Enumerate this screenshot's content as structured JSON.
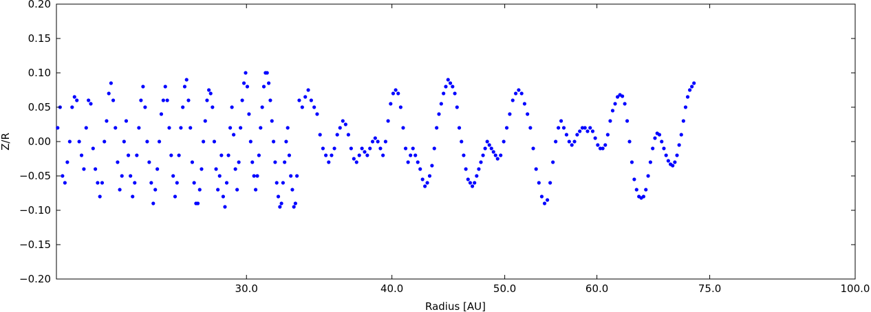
{
  "chart_data": {
    "type": "scatter",
    "xlabel": "Radius [AU]",
    "ylabel": "Z/R",
    "x_scale": "log",
    "xlim": [
      20.6,
      100.0
    ],
    "ylim": [
      -0.2,
      0.2
    ],
    "x_ticks": [
      30.0,
      40.0,
      50.0,
      60.0,
      75.0,
      100.0
    ],
    "x_tick_labels": [
      "30.0",
      "40.0",
      "50.0",
      "60.0",
      "75.0",
      "100.0"
    ],
    "y_ticks": [
      -0.2,
      -0.15,
      -0.1,
      -0.05,
      0.0,
      0.05,
      0.1,
      0.15,
      0.2
    ],
    "y_tick_labels": [
      "−0.20",
      "−0.15",
      "−0.10",
      "−0.05",
      "0.00",
      "0.05",
      "0.10",
      "0.15",
      "0.20"
    ],
    "grid": false,
    "marker_color": "#0000ff",
    "series": [
      {
        "points": [
          [
            20.65,
            0.02
          ],
          [
            20.75,
            0.05
          ],
          [
            20.85,
            -0.05
          ],
          [
            20.95,
            -0.06
          ],
          [
            21.05,
            -0.03
          ],
          [
            21.15,
            0.0
          ],
          [
            21.25,
            0.05
          ],
          [
            21.35,
            0.065
          ],
          [
            21.45,
            0.06
          ],
          [
            21.55,
            0.0
          ],
          [
            21.65,
            -0.02
          ],
          [
            21.75,
            -0.04
          ],
          [
            21.85,
            0.02
          ],
          [
            21.95,
            0.06
          ],
          [
            22.05,
            0.055
          ],
          [
            22.15,
            -0.01
          ],
          [
            22.25,
            -0.04
          ],
          [
            22.35,
            -0.06
          ],
          [
            22.45,
            -0.08
          ],
          [
            22.55,
            -0.06
          ],
          [
            22.65,
            0.0
          ],
          [
            22.75,
            0.03
          ],
          [
            22.85,
            0.07
          ],
          [
            22.95,
            0.085
          ],
          [
            23.05,
            0.06
          ],
          [
            23.15,
            0.02
          ],
          [
            23.25,
            -0.03
          ],
          [
            23.35,
            -0.07
          ],
          [
            23.45,
            -0.05
          ],
          [
            23.55,
            0.0
          ],
          [
            23.65,
            0.03
          ],
          [
            23.75,
            -0.02
          ],
          [
            23.85,
            -0.05
          ],
          [
            23.95,
            -0.08
          ],
          [
            24.05,
            -0.06
          ],
          [
            24.15,
            -0.02
          ],
          [
            24.25,
            0.02
          ],
          [
            24.35,
            0.06
          ],
          [
            24.45,
            0.08
          ],
          [
            24.55,
            0.05
          ],
          [
            24.65,
            0.0
          ],
          [
            24.75,
            -0.03
          ],
          [
            24.85,
            -0.06
          ],
          [
            24.95,
            -0.09
          ],
          [
            25.05,
            -0.07
          ],
          [
            25.15,
            -0.04
          ],
          [
            25.25,
            0.0
          ],
          [
            25.35,
            0.04
          ],
          [
            25.45,
            0.06
          ],
          [
            25.55,
            0.08
          ],
          [
            25.65,
            0.06
          ],
          [
            25.75,
            0.02
          ],
          [
            25.85,
            -0.02
          ],
          [
            25.95,
            -0.05
          ],
          [
            26.05,
            -0.08
          ],
          [
            26.15,
            -0.06
          ],
          [
            26.25,
            -0.02
          ],
          [
            26.35,
            0.02
          ],
          [
            26.45,
            0.05
          ],
          [
            26.55,
            0.08
          ],
          [
            26.65,
            0.09
          ],
          [
            26.75,
            0.06
          ],
          [
            26.85,
            0.02
          ],
          [
            26.95,
            -0.03
          ],
          [
            27.05,
            -0.06
          ],
          [
            27.15,
            -0.09
          ],
          [
            27.25,
            -0.09
          ],
          [
            27.35,
            -0.07
          ],
          [
            27.45,
            -0.04
          ],
          [
            27.55,
            0.0
          ],
          [
            27.65,
            0.03
          ],
          [
            27.75,
            0.06
          ],
          [
            27.85,
            0.075
          ],
          [
            27.95,
            0.07
          ],
          [
            28.05,
            0.05
          ],
          [
            28.15,
            0.0
          ],
          [
            28.25,
            -0.04
          ],
          [
            28.35,
            -0.07
          ],
          [
            28.45,
            -0.05
          ],
          [
            28.55,
            -0.02
          ],
          [
            28.65,
            -0.08
          ],
          [
            28.75,
            -0.095
          ],
          [
            28.85,
            -0.06
          ],
          [
            28.95,
            -0.02
          ],
          [
            29.05,
            0.02
          ],
          [
            29.15,
            0.05
          ],
          [
            29.25,
            0.01
          ],
          [
            29.35,
            -0.04
          ],
          [
            29.45,
            -0.07
          ],
          [
            29.55,
            -0.03
          ],
          [
            29.65,
            0.02
          ],
          [
            29.75,
            0.06
          ],
          [
            29.85,
            0.085
          ],
          [
            29.95,
            0.1
          ],
          [
            30.05,
            0.08
          ],
          [
            30.15,
            0.04
          ],
          [
            30.25,
            0.0
          ],
          [
            30.35,
            -0.03
          ],
          [
            30.45,
            -0.05
          ],
          [
            30.55,
            -0.07
          ],
          [
            30.65,
            -0.05
          ],
          [
            30.75,
            -0.02
          ],
          [
            30.85,
            0.02
          ],
          [
            30.95,
            0.05
          ],
          [
            31.05,
            0.08
          ],
          [
            31.15,
            0.1
          ],
          [
            31.25,
            0.1
          ],
          [
            31.35,
            0.085
          ],
          [
            31.45,
            0.06
          ],
          [
            31.55,
            0.03
          ],
          [
            31.65,
            0.0
          ],
          [
            31.75,
            -0.03
          ],
          [
            31.85,
            -0.06
          ],
          [
            31.95,
            -0.08
          ],
          [
            32.05,
            -0.095
          ],
          [
            32.15,
            -0.09
          ],
          [
            32.25,
            -0.06
          ],
          [
            32.35,
            -0.03
          ],
          [
            32.45,
            0.0
          ],
          [
            32.55,
            0.02
          ],
          [
            32.65,
            -0.02
          ],
          [
            32.75,
            -0.05
          ],
          [
            32.85,
            -0.07
          ],
          [
            32.95,
            -0.095
          ],
          [
            33.05,
            -0.09
          ],
          [
            33.15,
            -0.05
          ],
          [
            33.3,
            0.06
          ],
          [
            33.5,
            0.05
          ],
          [
            33.7,
            0.065
          ],
          [
            33.9,
            0.075
          ],
          [
            34.1,
            0.06
          ],
          [
            34.3,
            0.05
          ],
          [
            34.5,
            0.04
          ],
          [
            34.7,
            0.01
          ],
          [
            34.9,
            -0.01
          ],
          [
            35.1,
            -0.02
          ],
          [
            35.3,
            -0.03
          ],
          [
            35.5,
            -0.02
          ],
          [
            35.7,
            -0.01
          ],
          [
            35.9,
            0.01
          ],
          [
            36.1,
            0.02
          ],
          [
            36.3,
            0.03
          ],
          [
            36.5,
            0.025
          ],
          [
            36.7,
            0.01
          ],
          [
            36.9,
            -0.01
          ],
          [
            37.1,
            -0.025
          ],
          [
            37.3,
            -0.03
          ],
          [
            37.5,
            -0.02
          ],
          [
            37.7,
            -0.01
          ],
          [
            37.9,
            -0.015
          ],
          [
            38.1,
            -0.02
          ],
          [
            38.3,
            -0.01
          ],
          [
            38.5,
            0.0
          ],
          [
            38.7,
            0.005
          ],
          [
            38.9,
            0.0
          ],
          [
            39.1,
            -0.01
          ],
          [
            39.3,
            -0.02
          ],
          [
            39.5,
            0.0
          ],
          [
            39.7,
            0.03
          ],
          [
            39.9,
            0.055
          ],
          [
            40.1,
            0.07
          ],
          [
            40.3,
            0.075
          ],
          [
            40.5,
            0.07
          ],
          [
            40.7,
            0.05
          ],
          [
            40.9,
            0.02
          ],
          [
            41.1,
            -0.01
          ],
          [
            41.3,
            -0.03
          ],
          [
            41.5,
            -0.02
          ],
          [
            41.7,
            -0.01
          ],
          [
            41.9,
            -0.02
          ],
          [
            42.1,
            -0.03
          ],
          [
            42.3,
            -0.04
          ],
          [
            42.5,
            -0.055
          ],
          [
            42.7,
            -0.065
          ],
          [
            42.9,
            -0.06
          ],
          [
            43.1,
            -0.05
          ],
          [
            43.3,
            -0.035
          ],
          [
            43.5,
            -0.01
          ],
          [
            43.7,
            0.02
          ],
          [
            43.9,
            0.04
          ],
          [
            44.1,
            0.055
          ],
          [
            44.3,
            0.07
          ],
          [
            44.5,
            0.08
          ],
          [
            44.7,
            0.09
          ],
          [
            44.9,
            0.085
          ],
          [
            45.1,
            0.08
          ],
          [
            45.3,
            0.07
          ],
          [
            45.5,
            0.05
          ],
          [
            45.7,
            0.02
          ],
          [
            45.9,
            0.0
          ],
          [
            46.1,
            -0.02
          ],
          [
            46.3,
            -0.04
          ],
          [
            46.5,
            -0.055
          ],
          [
            46.7,
            -0.06
          ],
          [
            46.9,
            -0.065
          ],
          [
            47.1,
            -0.06
          ],
          [
            47.3,
            -0.05
          ],
          [
            47.5,
            -0.04
          ],
          [
            47.7,
            -0.03
          ],
          [
            47.9,
            -0.02
          ],
          [
            48.1,
            -0.01
          ],
          [
            48.3,
            0.0
          ],
          [
            48.5,
            -0.005
          ],
          [
            48.7,
            -0.01
          ],
          [
            48.9,
            -0.015
          ],
          [
            49.1,
            -0.02
          ],
          [
            49.3,
            -0.025
          ],
          [
            49.6,
            -0.02
          ],
          [
            49.9,
            0.0
          ],
          [
            50.2,
            0.02
          ],
          [
            50.5,
            0.04
          ],
          [
            50.8,
            0.06
          ],
          [
            51.1,
            0.07
          ],
          [
            51.4,
            0.075
          ],
          [
            51.7,
            0.07
          ],
          [
            52.0,
            0.055
          ],
          [
            52.3,
            0.04
          ],
          [
            52.6,
            0.02
          ],
          [
            52.9,
            -0.01
          ],
          [
            53.2,
            -0.04
          ],
          [
            53.5,
            -0.06
          ],
          [
            53.8,
            -0.08
          ],
          [
            54.1,
            -0.09
          ],
          [
            54.4,
            -0.085
          ],
          [
            54.7,
            -0.06
          ],
          [
            55.0,
            -0.03
          ],
          [
            55.3,
            0.0
          ],
          [
            55.6,
            0.02
          ],
          [
            55.9,
            0.03
          ],
          [
            56.2,
            0.02
          ],
          [
            56.5,
            0.01
          ],
          [
            56.8,
            0.0
          ],
          [
            57.1,
            -0.005
          ],
          [
            57.4,
            0.0
          ],
          [
            57.7,
            0.01
          ],
          [
            58.0,
            0.015
          ],
          [
            58.3,
            0.02
          ],
          [
            58.6,
            0.02
          ],
          [
            58.9,
            0.015
          ],
          [
            59.2,
            0.02
          ],
          [
            59.5,
            0.015
          ],
          [
            59.8,
            0.005
          ],
          [
            60.1,
            -0.005
          ],
          [
            60.4,
            -0.01
          ],
          [
            60.7,
            -0.01
          ],
          [
            61.0,
            -0.005
          ],
          [
            61.3,
            0.01
          ],
          [
            61.6,
            0.03
          ],
          [
            61.9,
            0.045
          ],
          [
            62.2,
            0.055
          ],
          [
            62.5,
            0.065
          ],
          [
            62.8,
            0.068
          ],
          [
            63.1,
            0.066
          ],
          [
            63.4,
            0.055
          ],
          [
            63.7,
            0.03
          ],
          [
            64.0,
            0.0
          ],
          [
            64.3,
            -0.03
          ],
          [
            64.6,
            -0.055
          ],
          [
            64.9,
            -0.07
          ],
          [
            65.2,
            -0.08
          ],
          [
            65.5,
            -0.082
          ],
          [
            65.8,
            -0.08
          ],
          [
            66.1,
            -0.07
          ],
          [
            66.4,
            -0.05
          ],
          [
            66.7,
            -0.03
          ],
          [
            67.0,
            -0.01
          ],
          [
            67.3,
            0.005
          ],
          [
            67.6,
            0.012
          ],
          [
            67.9,
            0.01
          ],
          [
            68.2,
            0.0
          ],
          [
            68.5,
            -0.01
          ],
          [
            68.8,
            -0.02
          ],
          [
            69.1,
            -0.028
          ],
          [
            69.4,
            -0.033
          ],
          [
            69.7,
            -0.035
          ],
          [
            70.0,
            -0.03
          ],
          [
            70.3,
            -0.02
          ],
          [
            70.6,
            -0.005
          ],
          [
            70.9,
            0.01
          ],
          [
            71.2,
            0.03
          ],
          [
            71.5,
            0.05
          ],
          [
            71.8,
            0.065
          ],
          [
            72.1,
            0.075
          ],
          [
            72.4,
            0.08
          ],
          [
            72.7,
            0.085
          ]
        ]
      }
    ]
  }
}
